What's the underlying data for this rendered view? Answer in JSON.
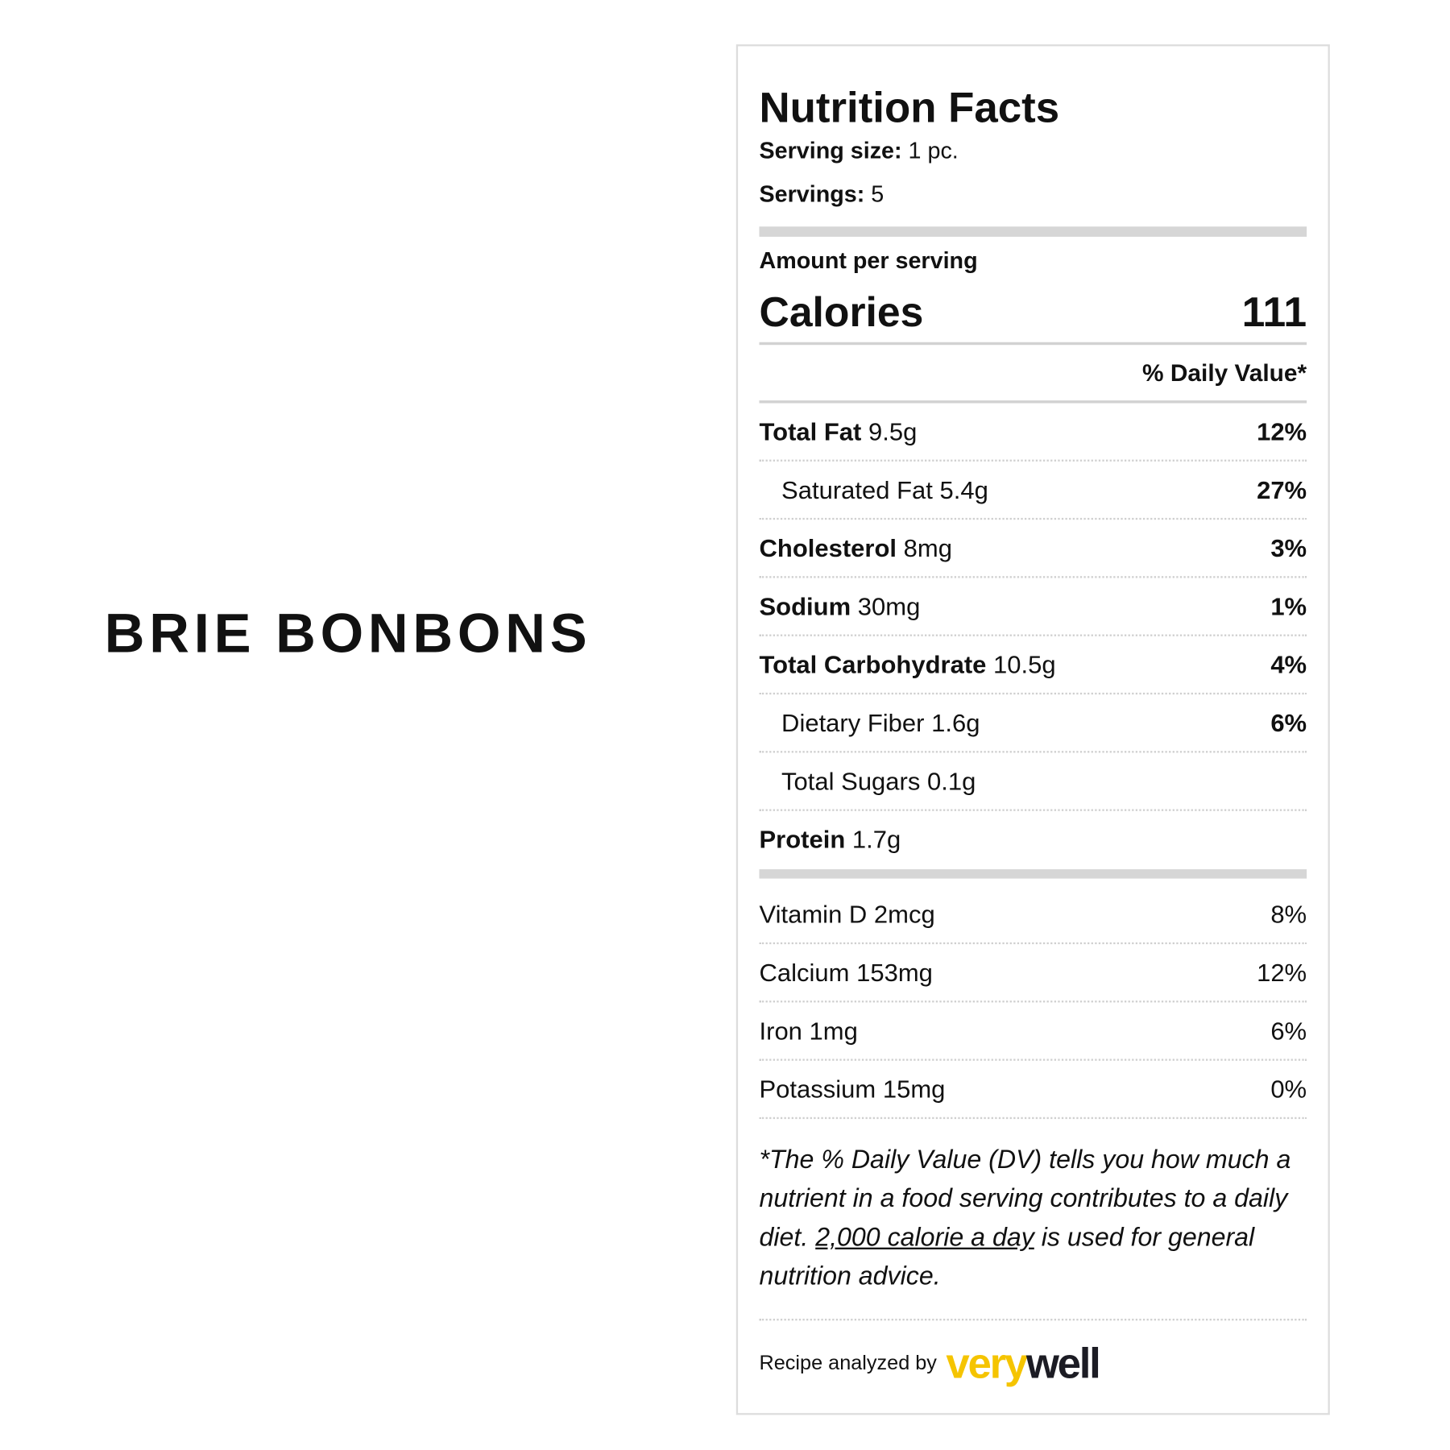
{
  "recipe_title": "BRIE BONBONS",
  "label": {
    "title": "Nutrition Facts",
    "serving_size_label": "Serving size:",
    "serving_size_value": "1 pc.",
    "servings_label": "Servings:",
    "servings_value": "5",
    "amount_per_serving": "Amount per serving",
    "calories_label": "Calories",
    "calories_value": "111",
    "daily_value_header": "% Daily Value*",
    "nutrients": [
      {
        "name": "Total Fat",
        "amount": "9.5g",
        "dv": "12%",
        "bold": true,
        "indent": false
      },
      {
        "name": "Saturated Fat",
        "amount": "5.4g",
        "dv": "27%",
        "bold": false,
        "indent": true
      },
      {
        "name": "Cholesterol",
        "amount": "8mg",
        "dv": "3%",
        "bold": true,
        "indent": false
      },
      {
        "name": "Sodium",
        "amount": "30mg",
        "dv": "1%",
        "bold": true,
        "indent": false
      },
      {
        "name": "Total Carbohydrate",
        "amount": "10.5g",
        "dv": "4%",
        "bold": true,
        "indent": false
      },
      {
        "name": "Dietary Fiber",
        "amount": "1.6g",
        "dv": "6%",
        "bold": false,
        "indent": true
      },
      {
        "name": "Total Sugars",
        "amount": "0.1g",
        "dv": "",
        "bold": false,
        "indent": true
      },
      {
        "name": "Protein",
        "amount": "1.7g",
        "dv": "",
        "bold": true,
        "indent": false
      }
    ],
    "vitamins": [
      {
        "name": "Vitamin D",
        "amount": "2mcg",
        "dv": "8%"
      },
      {
        "name": "Calcium",
        "amount": "153mg",
        "dv": "12%"
      },
      {
        "name": "Iron",
        "amount": "1mg",
        "dv": "6%"
      },
      {
        "name": "Potassium",
        "amount": "15mg",
        "dv": "0%"
      }
    ],
    "footnote_pre": "*The % Daily Value (DV) tells you how much a nutrient in a food serving contributes to a daily diet. ",
    "footnote_link": "2,000 calorie a day",
    "footnote_post": " is used for general nutrition advice.",
    "analyzed_by": "Recipe analyzed by",
    "logo_part1": "very",
    "logo_part2": "well",
    "logo_colors": {
      "very": "#f5c400",
      "well": "#1c1c24"
    }
  }
}
